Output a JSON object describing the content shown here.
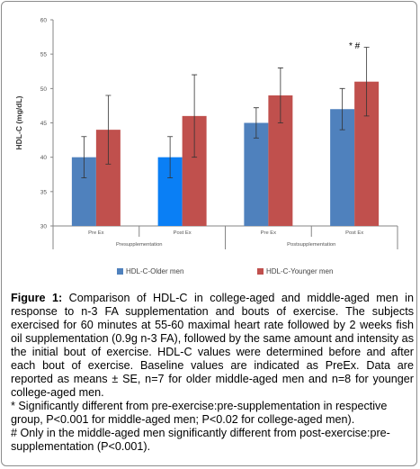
{
  "chart_data": {
    "type": "bar",
    "categories": [
      "Pre Ex",
      "Post Ex",
      "Pre Ex",
      "Post Ex"
    ],
    "groups": [
      "Presupplementation",
      "Postsupplementation"
    ],
    "series": [
      {
        "name": "HDL-C-Older men",
        "values": [
          40,
          40,
          45,
          47
        ],
        "errors": [
          3,
          3,
          2.2,
          3
        ],
        "color": "#4f81bd"
      },
      {
        "name": "HDL-C-Younger men",
        "values": [
          44,
          46,
          49,
          51
        ],
        "errors": [
          5,
          6,
          4,
          5
        ],
        "color": "#c0504d"
      }
    ],
    "highlight_bar_color": "#0a7ff5",
    "ylabel": "HDL-C (mg/dL)",
    "xlabel": "",
    "ylim": [
      30,
      60
    ],
    "yticks": [
      "30",
      "35",
      "40",
      "45",
      "50",
      "55",
      "60"
    ],
    "annotation": "*  #",
    "grid": false,
    "legend_position": "bottom"
  },
  "caption": {
    "figure_label": "Figure 1:",
    "text": " Comparison of HDL-C in college-aged and middle-aged men in response to n-3 FA supplementation and bouts of exercise. The subjects exercised for 60 minutes at 55-60 maximal heart rate followed by 2 weeks fish oil supplementation (0.9g n-3 FA), followed by the same amount and intensity as the initial bout of exercise.  HDL-C values were determined before and after each bout of exercise.  Baseline values are indicated as PreEx.  Data are reported as means ± SE, n=7 for older middle-aged men and n=8 for younger college-aged men.",
    "note1": "* Significantly different from pre-exercise:pre-supplementation in respective group, P<0.001 for middle-aged men; P<0.02 for college-aged men).",
    "note2": "# Only in the middle-aged men significantly different from post-exercise:pre-supplementation (P<0.001)."
  }
}
